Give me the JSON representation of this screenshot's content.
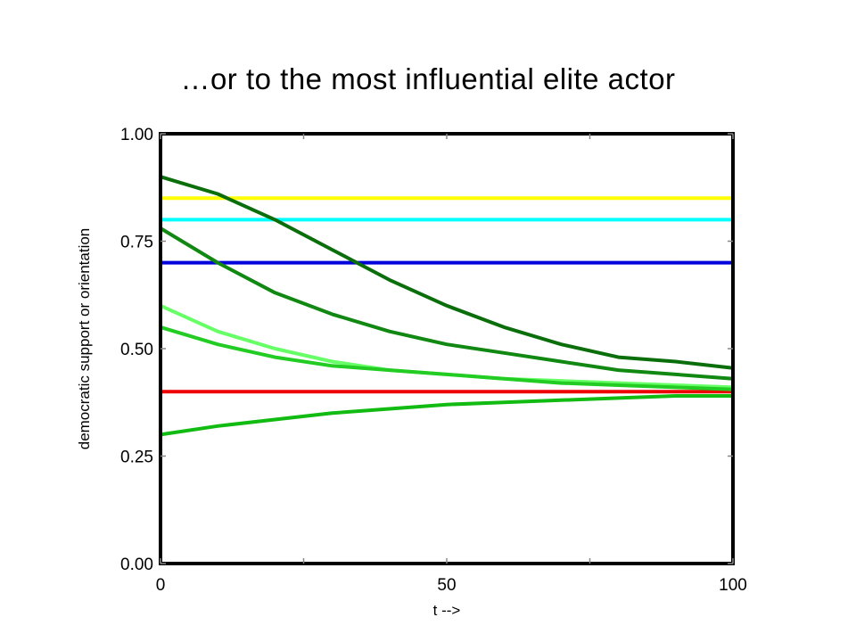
{
  "slide": {
    "title": "…or to the most influential elite actor"
  },
  "chart_data": {
    "type": "line",
    "title": "",
    "xlabel": "t -->",
    "ylabel": "democratic support or orientation",
    "xlim": [
      0,
      100
    ],
    "ylim": [
      0,
      1
    ],
    "xticks": [
      0,
      50,
      100
    ],
    "xtick_labels": [
      "0",
      "50",
      "100"
    ],
    "yticks": [
      0,
      0.25,
      0.5,
      0.75,
      1.0
    ],
    "ytick_labels": [
      "0.00",
      "0.25",
      "0.50",
      "0.75",
      "1.00"
    ],
    "grid": false,
    "legend": "none",
    "series": [
      {
        "color": "#ffff00",
        "x": [
          0,
          100
        ],
        "y": [
          0.85,
          0.85
        ]
      },
      {
        "color": "#00ffff",
        "x": [
          0,
          100
        ],
        "y": [
          0.8,
          0.8
        ]
      },
      {
        "color": "#0000dd",
        "x": [
          0,
          100
        ],
        "y": [
          0.7,
          0.7
        ]
      },
      {
        "color": "#ee0000",
        "x": [
          0,
          100
        ],
        "y": [
          0.4,
          0.4
        ]
      },
      {
        "color": "#0a6e0a",
        "x": [
          0,
          10,
          20,
          30,
          40,
          50,
          60,
          70,
          80,
          90,
          100
        ],
        "y": [
          0.9,
          0.86,
          0.8,
          0.73,
          0.66,
          0.6,
          0.55,
          0.51,
          0.48,
          0.47,
          0.455
        ]
      },
      {
        "color": "#118811",
        "x": [
          0,
          10,
          20,
          30,
          40,
          50,
          60,
          70,
          80,
          90,
          100
        ],
        "y": [
          0.78,
          0.7,
          0.63,
          0.58,
          0.54,
          0.51,
          0.49,
          0.47,
          0.45,
          0.44,
          0.43
        ]
      },
      {
        "color": "#66ff66",
        "x": [
          0,
          10,
          20,
          30,
          40,
          50,
          60,
          70,
          80,
          90,
          100
        ],
        "y": [
          0.6,
          0.54,
          0.5,
          0.47,
          0.45,
          0.44,
          0.43,
          0.425,
          0.42,
          0.415,
          0.41
        ]
      },
      {
        "color": "#22cc22",
        "x": [
          0,
          10,
          20,
          30,
          40,
          50,
          60,
          70,
          80,
          90,
          100
        ],
        "y": [
          0.55,
          0.51,
          0.48,
          0.46,
          0.45,
          0.44,
          0.43,
          0.42,
          0.415,
          0.41,
          0.405
        ]
      },
      {
        "color": "#11bb11",
        "x": [
          0,
          10,
          20,
          30,
          40,
          50,
          60,
          70,
          80,
          90,
          100
        ],
        "y": [
          0.3,
          0.32,
          0.335,
          0.35,
          0.36,
          0.37,
          0.375,
          0.38,
          0.385,
          0.39,
          0.39
        ]
      }
    ]
  }
}
